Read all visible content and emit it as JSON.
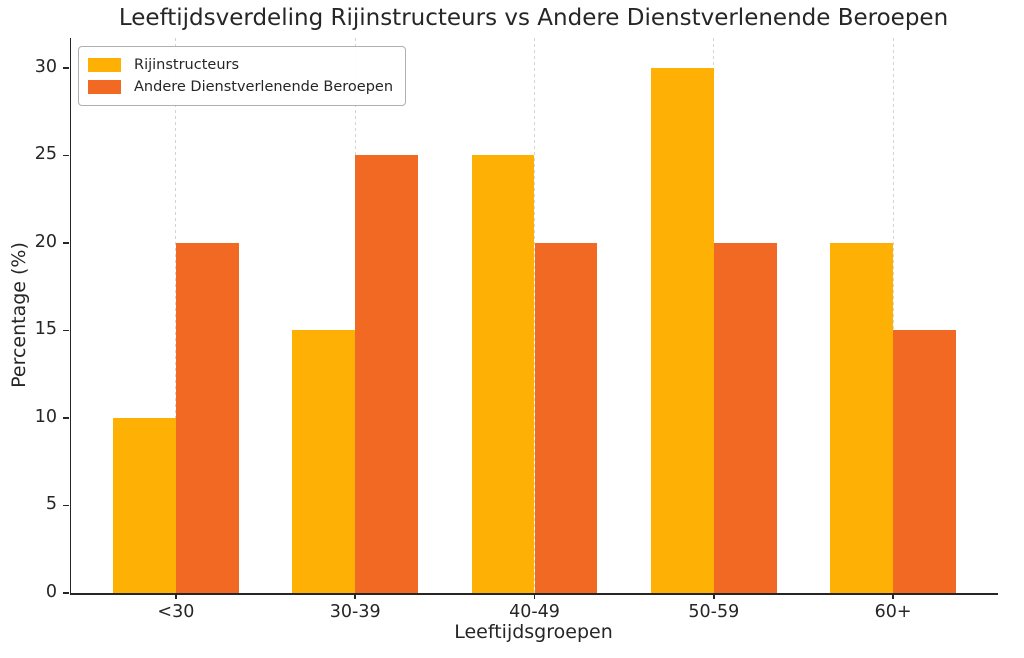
{
  "chart_data": {
    "type": "bar",
    "title": "Leeftijdsverdeling Rijinstructeurs vs Andere Dienstverlenende Beroepen",
    "xlabel": "Leeftijdsgroepen",
    "ylabel": "Percentage (%)",
    "categories": [
      "<30",
      "30-39",
      "40-49",
      "50-59",
      "60+"
    ],
    "series": [
      {
        "name": "Rijinstructeurs",
        "color": "#FFB005",
        "values": [
          10,
          15,
          25,
          30,
          20
        ]
      },
      {
        "name": "Andere Dienstverlenende Beroepen",
        "color": "#F26923",
        "values": [
          20,
          25,
          20,
          20,
          15
        ]
      }
    ],
    "yticks": [
      0,
      5,
      10,
      15,
      20,
      25,
      30
    ],
    "ylim": [
      0,
      31.7
    ],
    "xlim_pad": 0.585,
    "bar_width": 0.35,
    "legend_position": "upper left",
    "grid": "vertical dashed lines at category centers",
    "background": "#ffffff",
    "spines": [
      "left",
      "bottom"
    ]
  }
}
